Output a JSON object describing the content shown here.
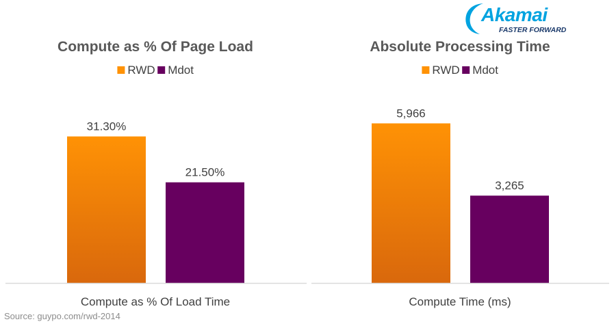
{
  "logo": {
    "word": "Akamai",
    "tagline": "FASTER FORWARD",
    "color_primary": "#00a3e0",
    "color_tagline": "#1b3a6b"
  },
  "source": "Source: guypo.com/rwd-2014",
  "colors": {
    "rwd_top": "#ff9205",
    "rwd_bottom": "#d9680c",
    "mdot": "#67005f",
    "axis": "#d9d9d9",
    "text": "#404040",
    "title": "#595959"
  },
  "chart_data": [
    {
      "type": "bar",
      "title": "Compute as % Of Page Load",
      "categories": [
        "Compute as % Of Load Time"
      ],
      "xlabel": "Compute as % Of Load Time",
      "legend_position": "top",
      "grid": false,
      "ylim": [
        0,
        40
      ],
      "series": [
        {
          "name": "RWD",
          "values": [
            31.3
          ],
          "labels": [
            "31.30%"
          ]
        },
        {
          "name": "Mdot",
          "values": [
            21.5
          ],
          "labels": [
            "21.50%"
          ]
        }
      ]
    },
    {
      "type": "bar",
      "title": "Absolute Processing Time",
      "categories": [
        "Compute Time (ms)"
      ],
      "xlabel": "Compute Time (ms)",
      "legend_position": "top",
      "grid": false,
      "ylim": [
        0,
        7000
      ],
      "series": [
        {
          "name": "RWD",
          "values": [
            5966
          ],
          "labels": [
            "5,966"
          ]
        },
        {
          "name": "Mdot",
          "values": [
            3265
          ],
          "labels": [
            "3,265"
          ]
        }
      ]
    }
  ]
}
